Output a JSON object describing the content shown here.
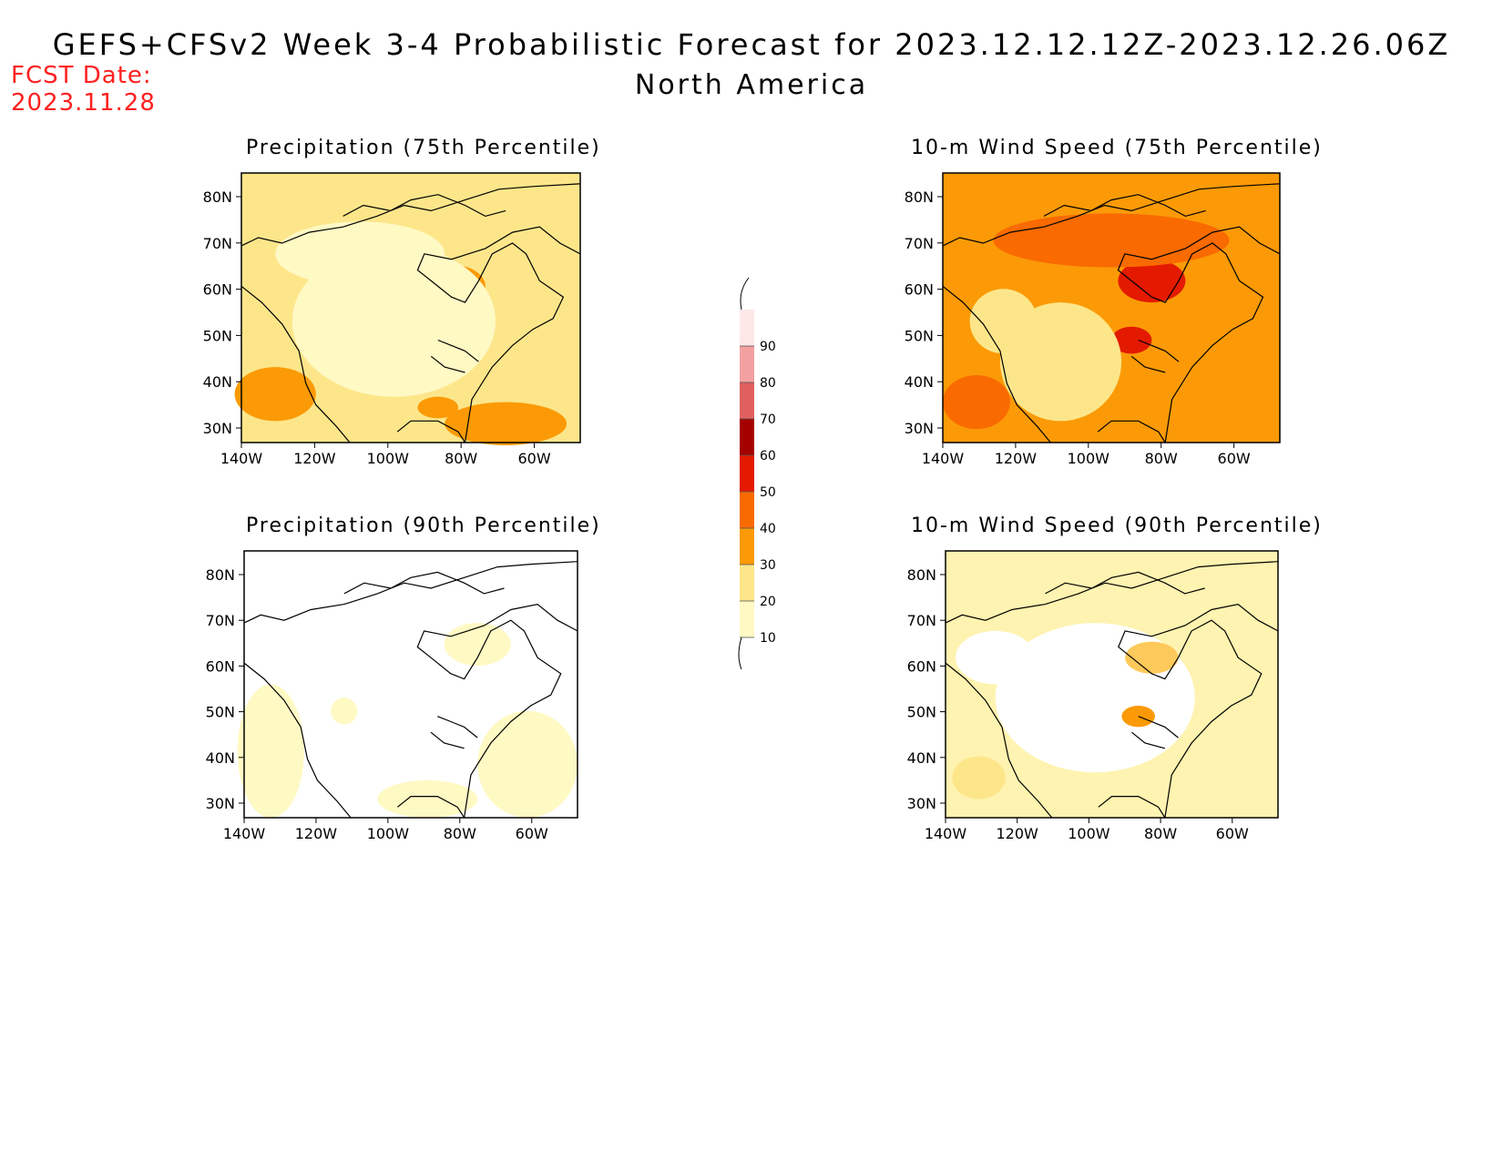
{
  "header": {
    "title": "GEFS+CFSv2 Week 3-4 Probabilistic Forecast for 2023.12.12.12Z-2023.12.26.06Z",
    "subtitle": "North America",
    "fcst_label": "FCST Date:",
    "fcst_date": "2023.11.28"
  },
  "axes": {
    "lat_labels": [
      "80N",
      "70N",
      "60N",
      "50N",
      "40N",
      "30N"
    ],
    "lon_labels": [
      "140W",
      "120W",
      "100W",
      "80W",
      "60W"
    ]
  },
  "panels": [
    {
      "title": "Precipitation (75th Percentile)",
      "background": "#fde68a"
    },
    {
      "title": "10-m Wind Speed (75th Percentile)",
      "background": "#fb9a06"
    },
    {
      "title": "Precipitation (90th Percentile)",
      "background": "#ffffff"
    },
    {
      "title": "10-m Wind Speed (90th Percentile)",
      "background": "#fef3b0"
    }
  ],
  "colorbar": {
    "levels": [
      "10",
      "20",
      "30",
      "40",
      "50",
      "60",
      "70",
      "80",
      "90"
    ],
    "colors": [
      "#fff9c4",
      "#fde68a",
      "#fb9a06",
      "#f96a00",
      "#e31a00",
      "#a50000",
      "#e06060",
      "#f2a0a0",
      "#fde8e8"
    ]
  }
}
